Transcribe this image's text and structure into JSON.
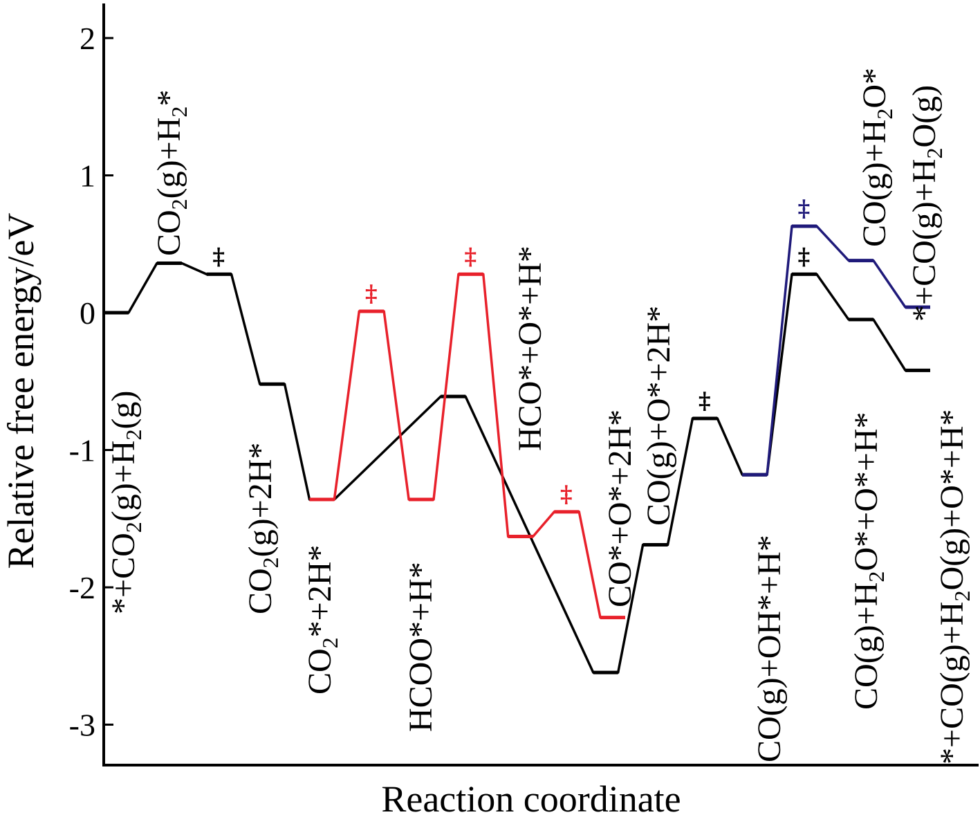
{
  "chart_data": {
    "type": "line",
    "title": "",
    "xlabel": "Reaction coordinate",
    "ylabel": "Relative free energy/eV",
    "ylim": [
      -3.3,
      2.25
    ],
    "yticks": [
      -3,
      -2,
      -1,
      0,
      1,
      2
    ],
    "ytick_labels": [
      "-3",
      "-2",
      "-1",
      "0",
      "1",
      "2"
    ],
    "grid": false,
    "legend": "none",
    "series": [
      {
        "color": "#000000",
        "levels": [
          {
            "x": [
              0,
              0.35
            ],
            "y": 0.0
          },
          {
            "x": [
              0.75,
              1.1
            ],
            "y": 0.36
          },
          {
            "x": [
              1.45,
              1.8
            ],
            "y": 0.28
          },
          {
            "x": [
              2.2,
              2.55
            ],
            "y": -0.52
          },
          {
            "x": [
              2.9,
              3.25
            ],
            "y": -1.36
          },
          {
            "x": [
              4.75,
              5.1
            ],
            "y": -0.61
          },
          {
            "x": [
              6.9,
              7.25
            ],
            "y": -2.62
          },
          {
            "x": [
              7.6,
              7.95
            ],
            "y": -1.69
          },
          {
            "x": [
              8.3,
              8.65
            ],
            "y": -0.77
          },
          {
            "x": [
              9.0,
              9.35
            ],
            "y": -1.18
          },
          {
            "x": [
              9.7,
              10.05
            ],
            "y": 0.28
          },
          {
            "x": [
              10.5,
              10.85
            ],
            "y": -0.05
          },
          {
            "x": [
              11.3,
              11.65
            ],
            "y": -0.42
          }
        ]
      },
      {
        "color": "#e8212b",
        "levels": [
          {
            "x": [
              2.9,
              3.25
            ],
            "y": -1.36
          },
          {
            "x": [
              3.6,
              3.95
            ],
            "y": 0.01
          },
          {
            "x": [
              4.3,
              4.65
            ],
            "y": -1.36
          },
          {
            "x": [
              5.0,
              5.35
            ],
            "y": 0.28
          },
          {
            "x": [
              5.7,
              6.05
            ],
            "y": -1.63
          },
          {
            "x": [
              6.35,
              6.7
            ],
            "y": -1.45
          },
          {
            "x": [
              7.0,
              7.35
            ],
            "y": -2.22
          }
        ]
      },
      {
        "color": "#1f1a7a",
        "levels": [
          {
            "x": [
              9.0,
              9.35
            ],
            "y": -1.18
          },
          {
            "x": [
              9.7,
              10.05
            ],
            "y": 0.63
          },
          {
            "x": [
              10.5,
              10.85
            ],
            "y": 0.38
          },
          {
            "x": [
              11.3,
              11.65
            ],
            "y": 0.04
          }
        ]
      }
    ],
    "transition_states": [
      {
        "color": "#000000",
        "x": 1.62,
        "y": 0.28
      },
      {
        "color": "#e8212b",
        "x": 3.77,
        "y": 0.01
      },
      {
        "color": "#e8212b",
        "x": 5.17,
        "y": 0.28
      },
      {
        "color": "#e8212b",
        "x": 6.52,
        "y": -1.45
      },
      {
        "color": "#000000",
        "x": 8.47,
        "y": -0.77
      },
      {
        "color": "#000000",
        "x": 9.87,
        "y": 0.28
      },
      {
        "color": "#1f1a7a",
        "x": 9.87,
        "y": 0.63
      }
    ],
    "state_labels": [
      {
        "text": "*+CO2(g)+H2(g)",
        "parts": [
          [
            "*+CO",
            0
          ],
          [
            "2",
            1
          ],
          [
            "(g)+H",
            0
          ],
          [
            "2",
            1
          ],
          [
            "(g)",
            0
          ]
        ]
      },
      {
        "text": "CO2(g)+H2*",
        "parts": [
          [
            "CO",
            0
          ],
          [
            "2",
            1
          ],
          [
            "(g)+H",
            0
          ],
          [
            "2",
            1
          ],
          [
            "*",
            0
          ]
        ]
      },
      {
        "text": "CO2(g)+2H*",
        "parts": [
          [
            "CO",
            0
          ],
          [
            "2",
            1
          ],
          [
            "(g)+2H*",
            0
          ]
        ]
      },
      {
        "text": "CO2*+2H*",
        "parts": [
          [
            "CO",
            0
          ],
          [
            "2",
            1
          ],
          [
            "*+2H*",
            0
          ]
        ]
      },
      {
        "text": "HCOO*+H*",
        "parts": [
          [
            "HCOO*+H*",
            0
          ]
        ]
      },
      {
        "text": "HCO*+O*+H*",
        "parts": [
          [
            "HCO*+O*+H*",
            0
          ]
        ]
      },
      {
        "text": "CO*+O*+2H*",
        "parts": [
          [
            "CO*+O*+2H*",
            0
          ]
        ]
      },
      {
        "text": "CO(g)+O*+2H*",
        "parts": [
          [
            "CO(g)+O*+2H*",
            0
          ]
        ]
      },
      {
        "text": "CO(g)+OH*+H*",
        "parts": [
          [
            "CO(g)+OH*+H*",
            0
          ]
        ]
      },
      {
        "text": "CO(g)+H2O*",
        "parts": [
          [
            "CO(g)+H",
            0
          ],
          [
            "2",
            1
          ],
          [
            "O*",
            0
          ]
        ]
      },
      {
        "text": "*+CO(g)+H2O(g)",
        "parts": [
          [
            "*+CO(g)+H",
            0
          ],
          [
            "2",
            1
          ],
          [
            "O(g)",
            0
          ]
        ]
      },
      {
        "text": "CO(g)+H2O*+O*+H*",
        "parts": [
          [
            "CO(g)+H",
            0
          ],
          [
            "2",
            1
          ],
          [
            "O*+O*+H*",
            0
          ]
        ]
      },
      {
        "text": "*+CO(g)+H2O(g)+O*+H*",
        "parts": [
          [
            "*+CO(g)+H",
            0
          ],
          [
            "2",
            1
          ],
          [
            "O(g)+O*+H*",
            0
          ]
        ]
      }
    ]
  }
}
